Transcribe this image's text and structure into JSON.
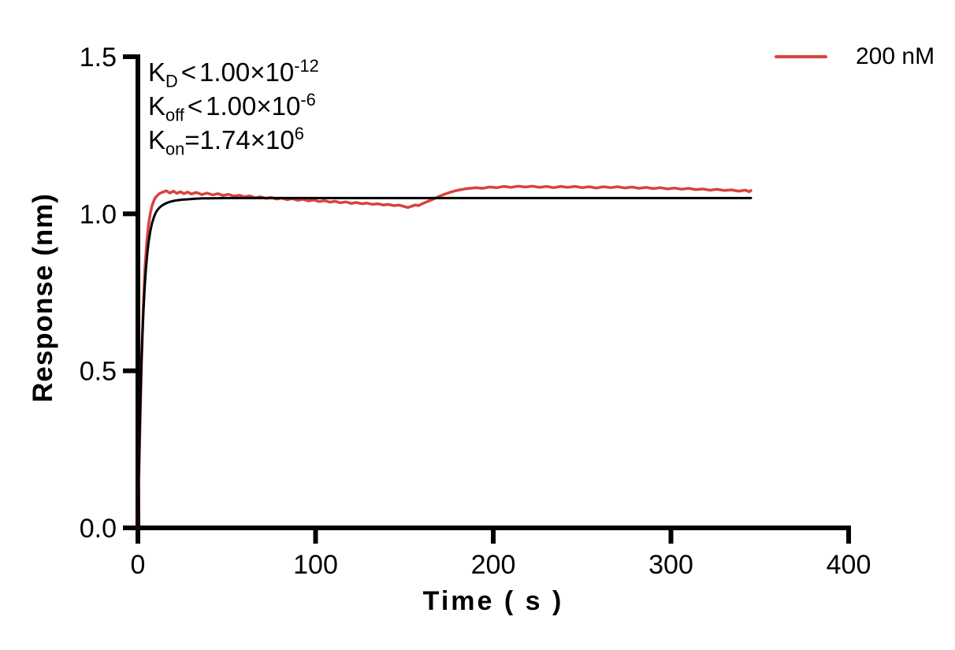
{
  "chart_data": {
    "type": "line",
    "title": "",
    "xlabel": "Time ( s )",
    "ylabel": "Response (nm)",
    "xlim": [
      0,
      400
    ],
    "ylim": [
      0,
      1.5
    ],
    "grid": false,
    "axis_color": "#000000",
    "xticks": [
      {
        "v": 0,
        "label": "0"
      },
      {
        "v": 100,
        "label": "100"
      },
      {
        "v": 200,
        "label": "200"
      },
      {
        "v": 300,
        "label": "300"
      },
      {
        "v": 400,
        "label": "400"
      }
    ],
    "yticks": [
      {
        "v": 0,
        "label": "0.0"
      },
      {
        "v": 0.5,
        "label": "0.5"
      },
      {
        "v": 1.0,
        "label": "1.0"
      },
      {
        "v": 1.5,
        "label": "1.5"
      }
    ],
    "legend": {
      "position": "top-right",
      "entries": [
        {
          "label": "200 nM",
          "color": "#d9423e"
        }
      ]
    },
    "annotation_lines": [
      [
        {
          "k": "t",
          "v": "K"
        },
        {
          "k": "sub",
          "v": "D"
        },
        {
          "k": "lt",
          "v": "<"
        },
        {
          "k": "t",
          "v": "1.00×10"
        },
        {
          "k": "sup",
          "v": "-12"
        }
      ],
      [
        {
          "k": "t",
          "v": "K"
        },
        {
          "k": "sub",
          "v": "off"
        },
        {
          "k": "lt",
          "v": "<"
        },
        {
          "k": "t",
          "v": "1.00×10"
        },
        {
          "k": "sup",
          "v": "-6"
        }
      ],
      [
        {
          "k": "t",
          "v": "K"
        },
        {
          "k": "sub",
          "v": "on"
        },
        {
          "k": "t",
          "v": "=1.74×10"
        },
        {
          "k": "sup",
          "v": "6"
        }
      ]
    ],
    "series": [
      {
        "name": "200 nM",
        "color": "#d9423e",
        "stroke_width": 3.5,
        "points": [
          [
            0,
            0
          ],
          [
            1,
            0.28
          ],
          [
            2,
            0.52
          ],
          [
            3,
            0.7
          ],
          [
            4,
            0.83
          ],
          [
            5,
            0.91
          ],
          [
            6,
            0.965
          ],
          [
            7,
            1.002
          ],
          [
            8,
            1.026
          ],
          [
            9,
            1.042
          ],
          [
            10,
            1.053
          ],
          [
            12,
            1.064
          ],
          [
            14,
            1.069
          ],
          [
            16,
            1.073
          ],
          [
            18,
            1.066
          ],
          [
            20,
            1.072
          ],
          [
            22,
            1.065
          ],
          [
            24,
            1.07
          ],
          [
            26,
            1.064
          ],
          [
            28,
            1.069
          ],
          [
            30,
            1.063
          ],
          [
            33,
            1.068
          ],
          [
            36,
            1.061
          ],
          [
            39,
            1.066
          ],
          [
            42,
            1.06
          ],
          [
            45,
            1.064
          ],
          [
            48,
            1.058
          ],
          [
            51,
            1.062
          ],
          [
            54,
            1.056
          ],
          [
            57,
            1.059
          ],
          [
            60,
            1.054
          ],
          [
            63,
            1.057
          ],
          [
            66,
            1.051
          ],
          [
            69,
            1.054
          ],
          [
            72,
            1.049
          ],
          [
            75,
            1.052
          ],
          [
            78,
            1.047
          ],
          [
            81,
            1.05
          ],
          [
            84,
            1.045
          ],
          [
            87,
            1.048
          ],
          [
            90,
            1.043
          ],
          [
            93,
            1.046
          ],
          [
            96,
            1.041
          ],
          [
            99,
            1.044
          ],
          [
            102,
            1.039
          ],
          [
            105,
            1.042
          ],
          [
            108,
            1.037
          ],
          [
            111,
            1.04
          ],
          [
            114,
            1.035
          ],
          [
            117,
            1.038
          ],
          [
            120,
            1.033
          ],
          [
            123,
            1.036
          ],
          [
            126,
            1.032
          ],
          [
            129,
            1.034
          ],
          [
            132,
            1.03
          ],
          [
            135,
            1.032
          ],
          [
            138,
            1.028
          ],
          [
            141,
            1.03
          ],
          [
            144,
            1.026
          ],
          [
            147,
            1.028
          ],
          [
            150,
            1.023
          ],
          [
            152,
            1.02
          ],
          [
            154,
            1.024
          ],
          [
            156,
            1.028
          ],
          [
            158,
            1.026
          ],
          [
            160,
            1.032
          ],
          [
            163,
            1.039
          ],
          [
            166,
            1.046
          ],
          [
            169,
            1.054
          ],
          [
            172,
            1.061
          ],
          [
            175,
            1.067
          ],
          [
            178,
            1.072
          ],
          [
            181,
            1.076
          ],
          [
            184,
            1.079
          ],
          [
            187,
            1.081
          ],
          [
            190,
            1.083
          ],
          [
            194,
            1.081
          ],
          [
            198,
            1.085
          ],
          [
            202,
            1.083
          ],
          [
            206,
            1.087
          ],
          [
            210,
            1.084
          ],
          [
            214,
            1.088
          ],
          [
            218,
            1.085
          ],
          [
            222,
            1.088
          ],
          [
            226,
            1.084
          ],
          [
            230,
            1.087
          ],
          [
            234,
            1.083
          ],
          [
            238,
            1.087
          ],
          [
            242,
            1.084
          ],
          [
            246,
            1.087
          ],
          [
            250,
            1.083
          ],
          [
            254,
            1.086
          ],
          [
            258,
            1.082
          ],
          [
            262,
            1.086
          ],
          [
            266,
            1.083
          ],
          [
            270,
            1.086
          ],
          [
            274,
            1.082
          ],
          [
            278,
            1.085
          ],
          [
            282,
            1.081
          ],
          [
            286,
            1.084
          ],
          [
            290,
            1.08
          ],
          [
            294,
            1.083
          ],
          [
            298,
            1.079
          ],
          [
            302,
            1.082
          ],
          [
            306,
            1.078
          ],
          [
            310,
            1.081
          ],
          [
            314,
            1.077
          ],
          [
            318,
            1.079
          ],
          [
            322,
            1.075
          ],
          [
            326,
            1.078
          ],
          [
            330,
            1.074
          ],
          [
            334,
            1.076
          ],
          [
            338,
            1.072
          ],
          [
            342,
            1.075
          ],
          [
            344,
            1.07
          ],
          [
            345,
            1.074
          ]
        ]
      },
      {
        "name": "fit",
        "color": "#000000",
        "stroke_width": 3,
        "points": [
          [
            0,
            0
          ],
          [
            0.5,
            0.168
          ],
          [
            1,
            0.309
          ],
          [
            1.5,
            0.427
          ],
          [
            2,
            0.525
          ],
          [
            2.5,
            0.607
          ],
          [
            3,
            0.676
          ],
          [
            3.5,
            0.733
          ],
          [
            4,
            0.781
          ],
          [
            4.5,
            0.821
          ],
          [
            5,
            0.856
          ],
          [
            5.5,
            0.884
          ],
          [
            6,
            0.909
          ],
          [
            6.5,
            0.928
          ],
          [
            7,
            0.945
          ],
          [
            7.5,
            0.958
          ],
          [
            8,
            0.971
          ],
          [
            8.5,
            0.98
          ],
          [
            9,
            0.989
          ],
          [
            9.5,
            0.996
          ],
          [
            10,
            1.003
          ],
          [
            11,
            1.012
          ],
          [
            12,
            1.019
          ],
          [
            13,
            1.024
          ],
          [
            14,
            1.028
          ],
          [
            15,
            1.031
          ],
          [
            16,
            1.034
          ],
          [
            18,
            1.038
          ],
          [
            20,
            1.041
          ],
          [
            22,
            1.043
          ],
          [
            25,
            1.045
          ],
          [
            28,
            1.046
          ],
          [
            32,
            1.048
          ],
          [
            36,
            1.049
          ],
          [
            40,
            1.049
          ],
          [
            50,
            1.05
          ],
          [
            60,
            1.05
          ],
          [
            345,
            1.05
          ]
        ]
      }
    ]
  }
}
